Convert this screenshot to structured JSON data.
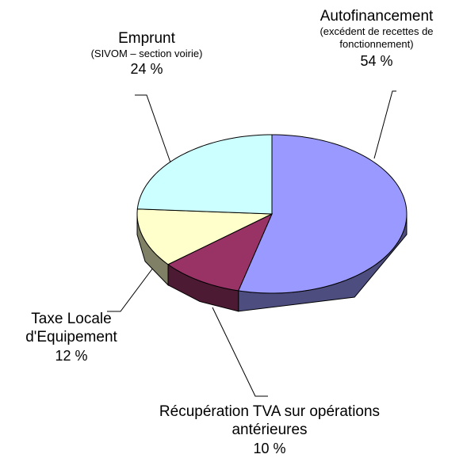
{
  "chart_data": {
    "type": "pie",
    "categories": [
      "Autofinancement",
      "Récupération TVA sur opérations antérieures",
      "Taxe Locale d'Equipement",
      "Emprunt"
    ],
    "values": [
      54,
      10,
      12,
      24
    ],
    "value_labels": [
      "54 %",
      "10 %",
      "12 %",
      "24 %"
    ],
    "colors": [
      "#9999ff",
      "#993366",
      "#ffffcc",
      "#ccffff"
    ],
    "side_colors": [
      "#4d4d80",
      "#4d1a33",
      "#808066",
      "#668080"
    ],
    "annotations": [
      {
        "category": "Autofinancement",
        "text": "(excédent de recettes de fonctionnement)"
      },
      {
        "category": "Emprunt",
        "text": "(SIVOM – section voirie)"
      }
    ]
  }
}
